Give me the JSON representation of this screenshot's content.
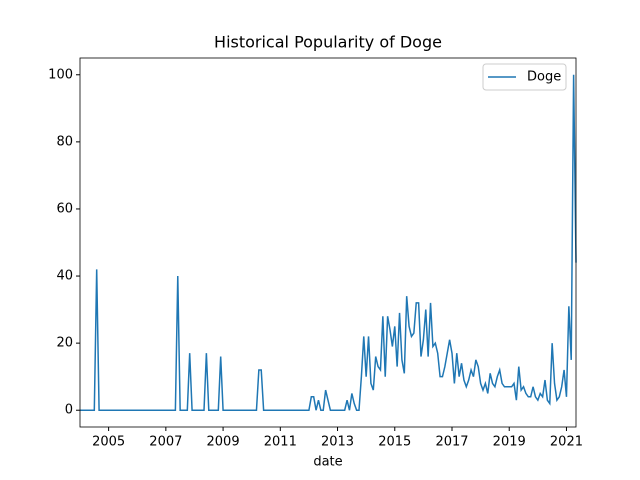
{
  "chart_data": {
    "type": "line",
    "title": "Historical Popularity of Doge",
    "x_label": "date",
    "x": [
      "2004-01",
      "2004-02",
      "2004-03",
      "2004-04",
      "2004-05",
      "2004-06",
      "2004-07",
      "2004-08",
      "2004-09",
      "2004-10",
      "2004-11",
      "2004-12",
      "2005-01",
      "2005-02",
      "2005-03",
      "2005-04",
      "2005-05",
      "2005-06",
      "2005-07",
      "2005-08",
      "2005-09",
      "2005-10",
      "2005-11",
      "2005-12",
      "2006-01",
      "2006-02",
      "2006-03",
      "2006-04",
      "2006-05",
      "2006-06",
      "2006-07",
      "2006-08",
      "2006-09",
      "2006-10",
      "2006-11",
      "2006-12",
      "2007-01",
      "2007-02",
      "2007-03",
      "2007-04",
      "2007-05",
      "2007-06",
      "2007-07",
      "2007-08",
      "2007-09",
      "2007-10",
      "2007-11",
      "2007-12",
      "2008-01",
      "2008-02",
      "2008-03",
      "2008-04",
      "2008-05",
      "2008-06",
      "2008-07",
      "2008-08",
      "2008-09",
      "2008-10",
      "2008-11",
      "2008-12",
      "2009-01",
      "2009-02",
      "2009-03",
      "2009-04",
      "2009-05",
      "2009-06",
      "2009-07",
      "2009-08",
      "2009-09",
      "2009-10",
      "2009-11",
      "2009-12",
      "2010-01",
      "2010-02",
      "2010-03",
      "2010-04",
      "2010-05",
      "2010-06",
      "2010-07",
      "2010-08",
      "2010-09",
      "2010-10",
      "2010-11",
      "2010-12",
      "2011-01",
      "2011-02",
      "2011-03",
      "2011-04",
      "2011-05",
      "2011-06",
      "2011-07",
      "2011-08",
      "2011-09",
      "2011-10",
      "2011-11",
      "2011-12",
      "2012-01",
      "2012-02",
      "2012-03",
      "2012-04",
      "2012-05",
      "2012-06",
      "2012-07",
      "2012-08",
      "2012-09",
      "2012-10",
      "2012-11",
      "2012-12",
      "2013-01",
      "2013-02",
      "2013-03",
      "2013-04",
      "2013-05",
      "2013-06",
      "2013-07",
      "2013-08",
      "2013-09",
      "2013-10",
      "2013-11",
      "2013-12",
      "2014-01",
      "2014-02",
      "2014-03",
      "2014-04",
      "2014-05",
      "2014-06",
      "2014-07",
      "2014-08",
      "2014-09",
      "2014-10",
      "2014-11",
      "2014-12",
      "2015-01",
      "2015-02",
      "2015-03",
      "2015-04",
      "2015-05",
      "2015-06",
      "2015-07",
      "2015-08",
      "2015-09",
      "2015-10",
      "2015-11",
      "2015-12",
      "2016-01",
      "2016-02",
      "2016-03",
      "2016-04",
      "2016-05",
      "2016-06",
      "2016-07",
      "2016-08",
      "2016-09",
      "2016-10",
      "2016-11",
      "2016-12",
      "2017-01",
      "2017-02",
      "2017-03",
      "2017-04",
      "2017-05",
      "2017-06",
      "2017-07",
      "2017-08",
      "2017-09",
      "2017-10",
      "2017-11",
      "2017-12",
      "2018-01",
      "2018-02",
      "2018-03",
      "2018-04",
      "2018-05",
      "2018-06",
      "2018-07",
      "2018-08",
      "2018-09",
      "2018-10",
      "2018-11",
      "2018-12",
      "2019-01",
      "2019-02",
      "2019-03",
      "2019-04",
      "2019-05",
      "2019-06",
      "2019-07",
      "2019-08",
      "2019-09",
      "2019-10",
      "2019-11",
      "2019-12",
      "2020-01",
      "2020-02",
      "2020-03",
      "2020-04",
      "2020-05",
      "2020-06",
      "2020-07",
      "2020-08",
      "2020-09",
      "2020-10",
      "2020-11",
      "2020-12",
      "2021-01",
      "2021-02",
      "2021-03",
      "2021-04",
      "2021-05"
    ],
    "series": [
      {
        "name": "Doge",
        "color": "#1f77b4",
        "values": [
          0,
          0,
          0,
          0,
          0,
          0,
          0,
          42,
          0,
          0,
          0,
          0,
          0,
          0,
          0,
          0,
          0,
          0,
          0,
          0,
          0,
          0,
          0,
          0,
          0,
          0,
          0,
          0,
          0,
          0,
          0,
          0,
          0,
          0,
          0,
          0,
          0,
          0,
          0,
          0,
          0,
          40,
          0,
          0,
          0,
          0,
          17,
          0,
          0,
          0,
          0,
          0,
          0,
          17,
          0,
          0,
          0,
          0,
          0,
          16,
          0,
          0,
          0,
          0,
          0,
          0,
          0,
          0,
          0,
          0,
          0,
          0,
          0,
          0,
          0,
          12,
          12,
          0,
          0,
          0,
          0,
          0,
          0,
          0,
          0,
          0,
          0,
          0,
          0,
          0,
          0,
          0,
          0,
          0,
          0,
          0,
          0,
          4,
          4,
          0,
          3,
          0,
          0,
          6,
          3,
          0,
          0,
          0,
          0,
          0,
          0,
          0,
          3,
          0,
          5,
          2,
          0,
          0,
          10,
          22,
          10,
          22,
          8,
          6,
          16,
          13,
          12,
          28,
          10,
          28,
          24,
          19,
          25,
          13,
          29,
          15,
          11,
          34,
          25,
          22,
          23,
          32,
          32,
          16,
          21,
          30,
          16,
          32,
          19,
          20,
          17,
          10,
          10,
          13,
          17,
          21,
          17,
          8,
          17,
          10,
          14,
          9,
          7,
          9,
          12,
          10,
          15,
          13,
          8,
          6,
          8,
          5,
          11,
          8,
          7,
          10,
          12,
          8,
          7,
          7,
          7,
          7,
          8,
          3,
          13,
          6,
          7,
          5,
          4,
          4,
          7,
          4,
          3,
          5,
          4,
          9,
          3,
          2,
          20,
          8,
          3,
          4,
          7,
          12,
          4,
          31,
          15,
          100,
          44
        ]
      }
    ],
    "xlim": [
      "2004-01",
      "2021-05"
    ],
    "xticks": [
      2005,
      2007,
      2009,
      2011,
      2013,
      2015,
      2017,
      2019,
      2021
    ],
    "ylim": [
      -5,
      105
    ],
    "yticks": [
      0,
      20,
      40,
      60,
      80,
      100
    ],
    "legend": "upper right"
  }
}
